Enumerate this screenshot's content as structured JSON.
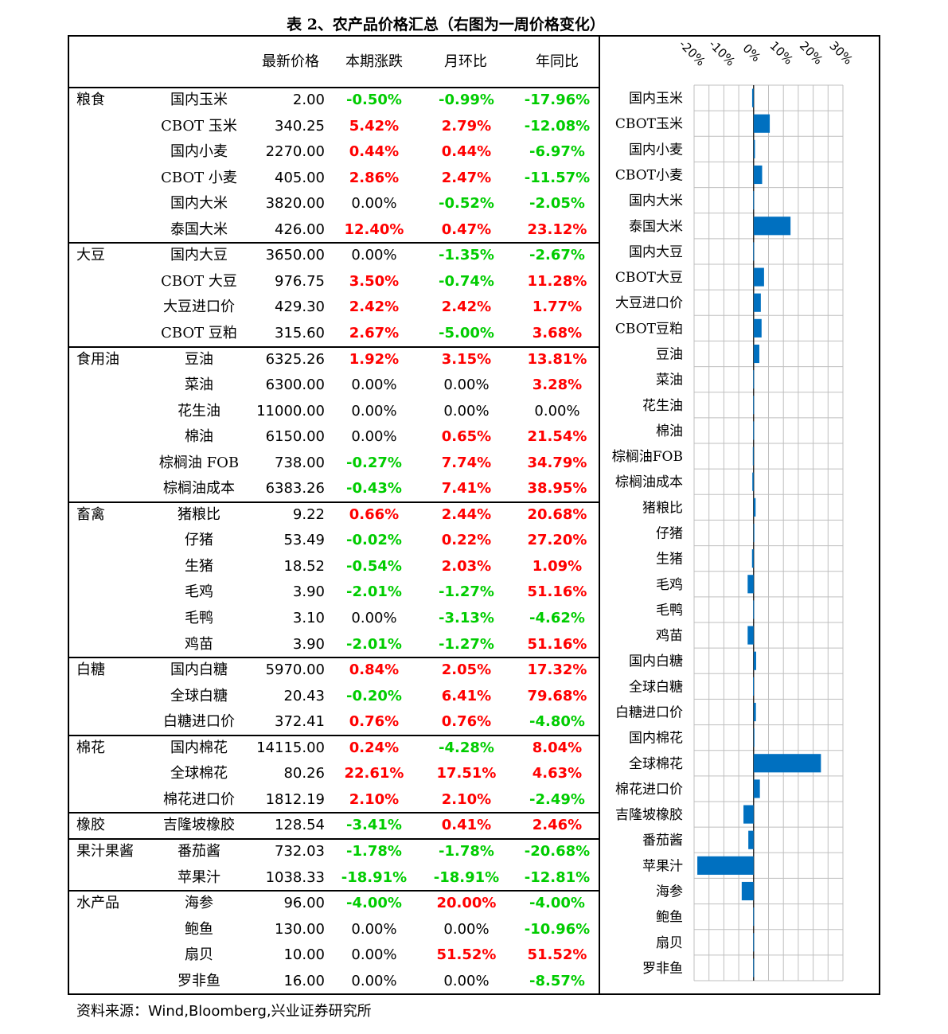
{
  "title": "表 2、农产品价格汇总（右图为一周价格变化）",
  "source": "资料来源：Wind,Bloomberg,兴业证券研究所",
  "headers": [
    "最新价格",
    "本期涨跌",
    "月环比",
    "年同比"
  ],
  "groups": [
    {
      "name": "粮食",
      "rows": [
        {
          "name": "国内玉米",
          "price": "2.00",
          "weekly": "-0.50%",
          "mom": "-0.99%",
          "yoy": "-17.96%"
        },
        {
          "name": "CBOT 玉米",
          "price": "340.25",
          "weekly": "5.42%",
          "mom": "2.79%",
          "yoy": "-12.08%"
        },
        {
          "name": "国内小麦",
          "price": "2270.00",
          "weekly": "0.44%",
          "mom": "0.44%",
          "yoy": "-6.97%"
        },
        {
          "name": "CBOT 小麦",
          "price": "405.00",
          "weekly": "2.86%",
          "mom": "2.47%",
          "yoy": "-11.57%"
        },
        {
          "name": "国内大米",
          "price": "3820.00",
          "weekly": "0.00%",
          "mom": "-0.52%",
          "yoy": "-2.05%"
        },
        {
          "name": "泰国大米",
          "price": "426.00",
          "weekly": "12.40%",
          "mom": "0.47%",
          "yoy": "23.12%"
        }
      ]
    },
    {
      "name": "大豆",
      "rows": [
        {
          "name": "国内大豆",
          "price": "3650.00",
          "weekly": "0.00%",
          "mom": "-1.35%",
          "yoy": "-2.67%"
        },
        {
          "name": "CBOT 大豆",
          "price": "976.75",
          "weekly": "3.50%",
          "mom": "-0.74%",
          "yoy": "11.28%"
        },
        {
          "name": "大豆进口价",
          "price": "429.30",
          "weekly": "2.42%",
          "mom": "2.42%",
          "yoy": "1.77%"
        },
        {
          "name": "CBOT 豆粕",
          "price": "315.60",
          "weekly": "2.67%",
          "mom": "-5.00%",
          "yoy": "3.68%"
        }
      ]
    },
    {
      "name": "食用油",
      "rows": [
        {
          "name": "豆油",
          "price": "6325.26",
          "weekly": "1.92%",
          "mom": "3.15%",
          "yoy": "13.81%"
        },
        {
          "name": "菜油",
          "price": "6300.00",
          "weekly": "0.00%",
          "mom": "0.00%",
          "yoy": "3.28%"
        },
        {
          "name": "花生油",
          "price": "11000.00",
          "weekly": "0.00%",
          "mom": "0.00%",
          "yoy": "0.00%"
        },
        {
          "name": "棉油",
          "price": "6150.00",
          "weekly": "0.00%",
          "mom": "0.65%",
          "yoy": "21.54%"
        },
        {
          "name": "棕榈油 FOB",
          "price": "738.00",
          "weekly": "-0.27%",
          "mom": "7.74%",
          "yoy": "34.79%"
        },
        {
          "name": "棕榈油成本",
          "price": "6383.26",
          "weekly": "-0.43%",
          "mom": "7.41%",
          "yoy": "38.95%"
        }
      ]
    },
    {
      "name": "畜禽",
      "rows": [
        {
          "name": "猪粮比",
          "price": "9.22",
          "weekly": "0.66%",
          "mom": "2.44%",
          "yoy": "20.68%"
        },
        {
          "name": "仔猪",
          "price": "53.49",
          "weekly": "-0.02%",
          "mom": "0.22%",
          "yoy": "27.20%"
        },
        {
          "name": "生猪",
          "price": "18.52",
          "weekly": "-0.54%",
          "mom": "2.03%",
          "yoy": "1.09%"
        },
        {
          "name": "毛鸡",
          "price": "3.90",
          "weekly": "-2.01%",
          "mom": "-1.27%",
          "yoy": "51.16%"
        },
        {
          "name": "毛鸭",
          "price": "3.10",
          "weekly": "0.00%",
          "mom": "-3.13%",
          "yoy": "-4.62%"
        },
        {
          "name": "鸡苗",
          "price": "3.90",
          "weekly": "-2.01%",
          "mom": "-1.27%",
          "yoy": "51.16%"
        }
      ]
    },
    {
      "name": "白糖",
      "rows": [
        {
          "name": "国内白糖",
          "price": "5970.00",
          "weekly": "0.84%",
          "mom": "2.05%",
          "yoy": "17.32%"
        },
        {
          "name": "全球白糖",
          "price": "20.43",
          "weekly": "-0.20%",
          "mom": "6.41%",
          "yoy": "79.68%"
        },
        {
          "name": "白糖进口价",
          "price": "372.41",
          "weekly": "0.76%",
          "mom": "0.76%",
          "yoy": "-4.80%"
        }
      ]
    },
    {
      "name": "棉花",
      "rows": [
        {
          "name": "国内棉花",
          "price": "14115.00",
          "weekly": "0.24%",
          "mom": "-4.28%",
          "yoy": "8.04%"
        },
        {
          "name": "全球棉花",
          "price": "80.26",
          "weekly": "22.61%",
          "mom": "17.51%",
          "yoy": "4.63%"
        },
        {
          "name": "棉花进口价",
          "price": "1812.19",
          "weekly": "2.10%",
          "mom": "2.10%",
          "yoy": "-2.49%"
        }
      ]
    },
    {
      "name": "橡胶",
      "rows": [
        {
          "name": "吉隆坡橡胶",
          "price": "128.54",
          "weekly": "-3.41%",
          "mom": "0.41%",
          "yoy": "2.46%"
        }
      ]
    },
    {
      "name": "果汁果酱",
      "rows": [
        {
          "name": "番茄酱",
          "price": "732.03",
          "weekly": "-1.78%",
          "mom": "-1.78%",
          "yoy": "-20.68%"
        },
        {
          "name": "苹果汁",
          "price": "1038.33",
          "weekly": "-18.91%",
          "mom": "-18.91%",
          "yoy": "-12.81%"
        }
      ]
    },
    {
      "name": "水产品",
      "rows": [
        {
          "name": "海参",
          "price": "96.00",
          "weekly": "-4.00%",
          "mom": "20.00%",
          "yoy": "-4.00%"
        },
        {
          "name": "鲍鱼",
          "price": "130.00",
          "weekly": "0.00%",
          "mom": "0.00%",
          "yoy": "-10.96%"
        },
        {
          "name": "扇贝",
          "price": "10.00",
          "weekly": "0.00%",
          "mom": "51.52%",
          "yoy": "51.52%"
        },
        {
          "name": "罗非鱼",
          "price": "16.00",
          "weekly": "0.00%",
          "mom": "0.00%",
          "yoy": "-8.57%"
        }
      ]
    }
  ],
  "colors": {
    "up": "#ff0000",
    "down": "#00cc00",
    "bar": "#0070c0",
    "grid": "#bfbfbf"
  },
  "chart_data": {
    "type": "bar",
    "orientation": "horizontal",
    "categories": [
      "国内玉米",
      "CBOT玉米",
      "国内小麦",
      "CBOT小麦",
      "国内大米",
      "泰国大米",
      "国内大豆",
      "CBOT大豆",
      "大豆进口价",
      "CBOT豆粕",
      "豆油",
      "菜油",
      "花生油",
      "棉油",
      "棕榈油FOB",
      "棕榈油成本",
      "猪粮比",
      "仔猪",
      "生猪",
      "毛鸡",
      "毛鸭",
      "鸡苗",
      "国内白糖",
      "全球白糖",
      "白糖进口价",
      "国内棉花",
      "全球棉花",
      "棉花进口价",
      "吉隆坡橡胶",
      "番茄酱",
      "苹果汁",
      "海参",
      "鲍鱼",
      "扇贝",
      "罗非鱼"
    ],
    "values": [
      -0.5,
      5.42,
      0.44,
      2.86,
      0.0,
      12.4,
      0.0,
      3.5,
      2.42,
      2.67,
      1.92,
      0.0,
      0.0,
      0.0,
      -0.27,
      -0.43,
      0.66,
      -0.02,
      -0.54,
      -2.01,
      0.0,
      -2.01,
      0.84,
      -0.2,
      0.76,
      0.24,
      22.61,
      2.1,
      -3.41,
      -1.78,
      -18.91,
      -4.0,
      0.0,
      0.0,
      0.0
    ],
    "xticks": [
      "-20%",
      "-10%",
      "0%",
      "10%",
      "20%",
      "30%"
    ],
    "xlim": [
      -20,
      30
    ],
    "grid": true,
    "legend": "none"
  }
}
